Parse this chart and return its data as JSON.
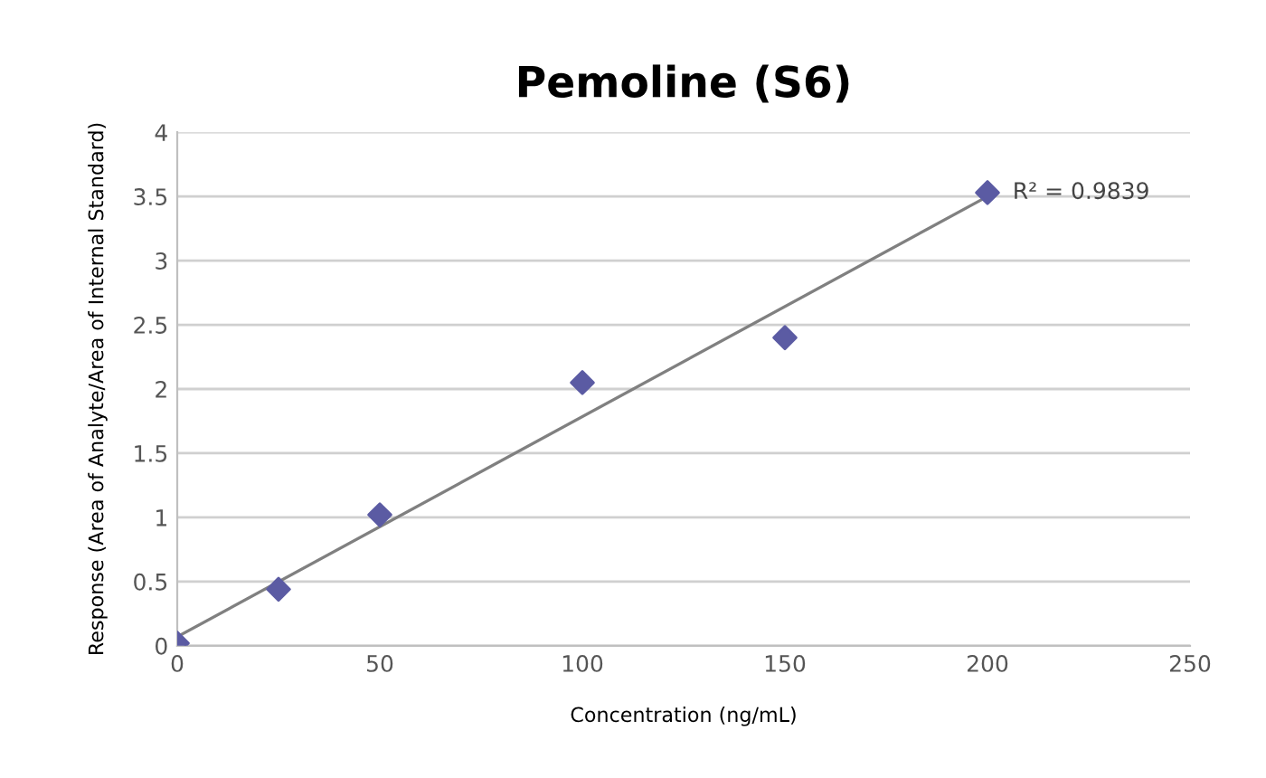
{
  "chart_data": {
    "type": "scatter",
    "title": "Pemoline (S6)",
    "xlabel": "Concentration (ng/mL)",
    "ylabel": "Response (Area of Analyte/Area of Internal Standard)",
    "x": [
      0,
      25,
      50,
      100,
      150,
      200
    ],
    "series": [
      {
        "color": "#5b5ba3",
        "values": [
          0.02,
          0.44,
          1.02,
          2.05,
          2.4,
          3.53
        ],
        "marker": "diamond"
      },
      {
        "type": "line",
        "color": "#808080",
        "x": [
          0,
          200
        ],
        "values": [
          0.07,
          3.5
        ],
        "marker": "none"
      }
    ],
    "annotations": [
      {
        "text": "R² = 0.9839",
        "x": 200,
        "y": 3.53
      }
    ],
    "xlim": [
      0,
      250
    ],
    "xticks": [
      0,
      50,
      100,
      150,
      200,
      250
    ],
    "ylim": [
      0,
      4
    ],
    "yticks": [
      0,
      0.5,
      1,
      1.5,
      2,
      2.5,
      3,
      3.5,
      4
    ],
    "grid": "y",
    "legend": false
  }
}
